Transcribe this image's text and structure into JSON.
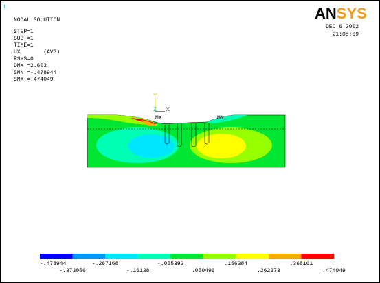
{
  "window_number": "1",
  "header": {
    "title": "NODAL SOLUTION",
    "lines": [
      "STEP=1",
      "SUB =1",
      "TIME=1",
      "UX       (AVG)",
      "RSYS=0",
      "DMX =2.603",
      "SMN =-.478944",
      "SMX =.474049"
    ]
  },
  "logo": {
    "part1": "AN",
    "part2": "SYS"
  },
  "date": "DEC  6 2002",
  "time": "21:08:09",
  "axes": {
    "y": "Y",
    "z": "Z",
    "x": "X"
  },
  "markers": {
    "max": "MX",
    "min": "MN"
  },
  "legend": {
    "colors": [
      "#0000ff",
      "#0096ff",
      "#00e6ff",
      "#00ffb4",
      "#00e632",
      "#96ff00",
      "#ffff00",
      "#ffaa00",
      "#ff0000"
    ],
    "labels": [
      "-.478944",
      "-.373056",
      "-.267168",
      "-.16128",
      "-.055392",
      ".050496",
      ".156384",
      ".262273",
      ".368161",
      ".474049"
    ]
  }
}
